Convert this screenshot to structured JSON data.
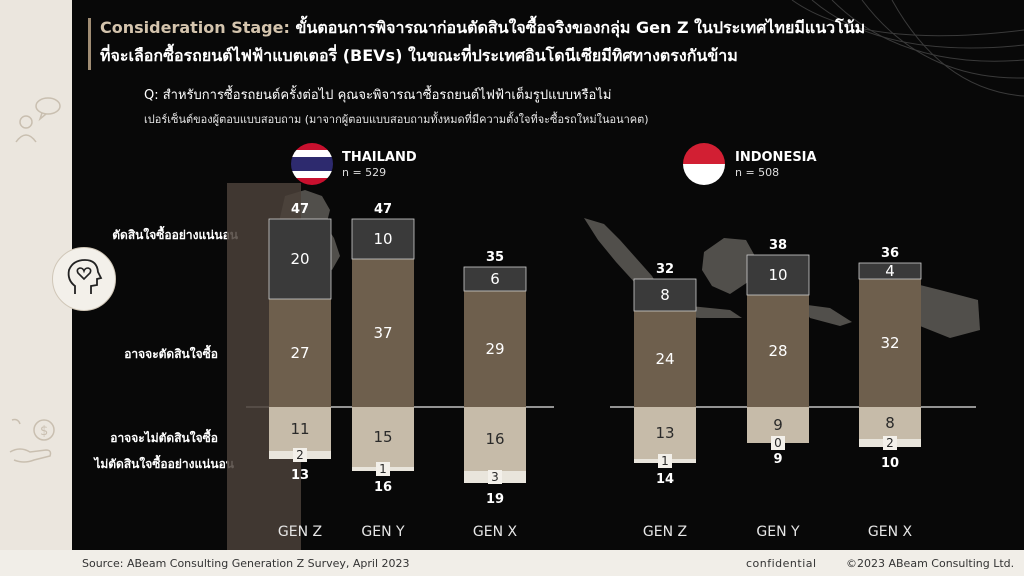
{
  "header": {
    "title_part1": "Consideration Stage:",
    "title_part2": " ขั้นตอนการพิจารณาก่อนตัดสินใจซื้อจริงของกลุ่ม ",
    "title_part3": "Gen Z",
    "title_part4": " ในประเทศไทยมีแนวโน้ม",
    "title_line2": "ที่จะเลือกซื้อรถยนต์ไฟฟ้าแบตเตอรี่ (BEVs) ในขณะที่ประเทศอินโดนีเซียมีทิศทางตรงกันข้าม",
    "question": "Q: สำหรับการซื้อรถยนต์ครั้งต่อไป คุณจะพิจารณาซื้อรถยนต์ไฟฟ้าเต็มรูปแบบหรือไม่",
    "subtitle": "เปอร์เซ็นต์ของผู้ตอบแบบสอบถาม (มาจากผู้ตอบแบบสอบถามทั้งหมดที่มีความตั้งใจที่จะซื้อรถใหม่ในอนาคต)"
  },
  "row_labels": {
    "definitely": "ตัดสินใจซื้ออย่างแน่นอน",
    "maybe": "อาจจะตัดสินใจซื้อ",
    "maybe_not": "อาจจะไม่ตัดสินใจซื้อ",
    "definitely_not": "ไม่ตัดสินใจซื้ออย่างแน่นอน"
  },
  "footer": {
    "source": "Source: ABeam Consulting Generation Z Survey, April 2023",
    "confidential": "confidential",
    "copyright": "©2023 ABeam Consulting Ltd."
  },
  "colors": {
    "definitely": "#3a3a3a",
    "maybe": "#6e5f4d",
    "maybe_not": "#c6bba9",
    "definitely_not": "#e9e5dc",
    "highlight": "#4a4038"
  },
  "chart_data": [
    {
      "type": "bar",
      "country": "THAILAND",
      "n": "n = 529",
      "categories": [
        "GEN Z",
        "GEN Y",
        "GEN X"
      ],
      "series": [
        {
          "name": "ตัดสินใจซื้ออย่างแน่นอน",
          "values": [
            20,
            10,
            6
          ]
        },
        {
          "name": "อาจจะตัดสินใจซื้อ",
          "values": [
            27,
            37,
            29
          ]
        },
        {
          "name": "อาจจะไม่ตัดสินใจซื้อ",
          "values": [
            11,
            15,
            16
          ]
        },
        {
          "name": "ไม่ตัดสินใจซื้ออย่างแน่นอน",
          "values": [
            2,
            1,
            3
          ]
        }
      ],
      "positive_totals": [
        47,
        47,
        35
      ],
      "negative_totals": [
        13,
        16,
        19
      ],
      "highlight": "GEN Z"
    },
    {
      "type": "bar",
      "country": "INDONESIA",
      "n": "n = 508",
      "categories": [
        "GEN Z",
        "GEN Y",
        "GEN X"
      ],
      "series": [
        {
          "name": "ตัดสินใจซื้ออย่างแน่นอน",
          "values": [
            8,
            10,
            4
          ]
        },
        {
          "name": "อาจจะตัดสินใจซื้อ",
          "values": [
            24,
            28,
            32
          ]
        },
        {
          "name": "อาจจะไม่ตัดสินใจซื้อ",
          "values": [
            13,
            9,
            8
          ]
        },
        {
          "name": "ไม่ตัดสินใจซื้ออย่างแน่นอน",
          "values": [
            1,
            0,
            2
          ]
        }
      ],
      "positive_totals": [
        32,
        38,
        36
      ],
      "negative_totals": [
        14,
        9,
        10
      ]
    }
  ]
}
